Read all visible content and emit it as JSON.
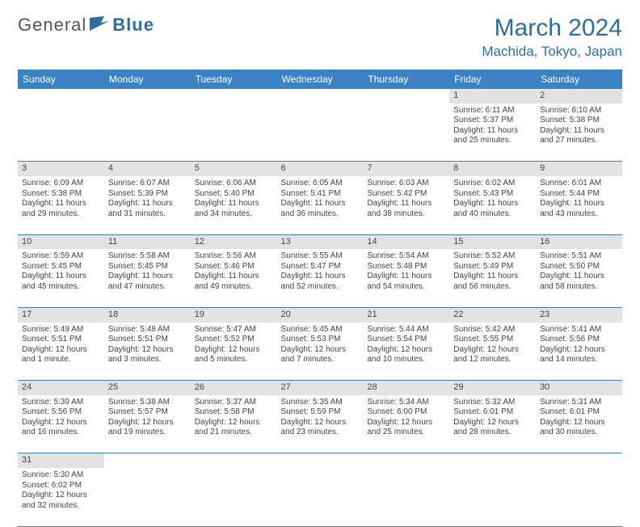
{
  "logo": {
    "general": "General",
    "blue": "Blue"
  },
  "title": "March 2024",
  "location": "Machida, Tokyo, Japan",
  "colors": {
    "header_bg": "#3b82c4",
    "header_fg": "#ffffff",
    "accent": "#2d6da3",
    "daynum_bg": "#e3e3e3",
    "text": "#444444",
    "border": "#3b82c4",
    "page_bg": "#ffffff"
  },
  "day_names": [
    "Sunday",
    "Monday",
    "Tuesday",
    "Wednesday",
    "Thursday",
    "Friday",
    "Saturday"
  ],
  "weeks": [
    [
      null,
      null,
      null,
      null,
      null,
      {
        "n": "1",
        "sr": "Sunrise: 6:11 AM",
        "ss": "Sunset: 5:37 PM",
        "dl1": "Daylight: 11 hours",
        "dl2": "and 25 minutes."
      },
      {
        "n": "2",
        "sr": "Sunrise: 6:10 AM",
        "ss": "Sunset: 5:38 PM",
        "dl1": "Daylight: 11 hours",
        "dl2": "and 27 minutes."
      }
    ],
    [
      {
        "n": "3",
        "sr": "Sunrise: 6:09 AM",
        "ss": "Sunset: 5:38 PM",
        "dl1": "Daylight: 11 hours",
        "dl2": "and 29 minutes."
      },
      {
        "n": "4",
        "sr": "Sunrise: 6:07 AM",
        "ss": "Sunset: 5:39 PM",
        "dl1": "Daylight: 11 hours",
        "dl2": "and 31 minutes."
      },
      {
        "n": "5",
        "sr": "Sunrise: 6:06 AM",
        "ss": "Sunset: 5:40 PM",
        "dl1": "Daylight: 11 hours",
        "dl2": "and 34 minutes."
      },
      {
        "n": "6",
        "sr": "Sunrise: 6:05 AM",
        "ss": "Sunset: 5:41 PM",
        "dl1": "Daylight: 11 hours",
        "dl2": "and 36 minutes."
      },
      {
        "n": "7",
        "sr": "Sunrise: 6:03 AM",
        "ss": "Sunset: 5:42 PM",
        "dl1": "Daylight: 11 hours",
        "dl2": "and 38 minutes."
      },
      {
        "n": "8",
        "sr": "Sunrise: 6:02 AM",
        "ss": "Sunset: 5:43 PM",
        "dl1": "Daylight: 11 hours",
        "dl2": "and 40 minutes."
      },
      {
        "n": "9",
        "sr": "Sunrise: 6:01 AM",
        "ss": "Sunset: 5:44 PM",
        "dl1": "Daylight: 11 hours",
        "dl2": "and 43 minutes."
      }
    ],
    [
      {
        "n": "10",
        "sr": "Sunrise: 5:59 AM",
        "ss": "Sunset: 5:45 PM",
        "dl1": "Daylight: 11 hours",
        "dl2": "and 45 minutes."
      },
      {
        "n": "11",
        "sr": "Sunrise: 5:58 AM",
        "ss": "Sunset: 5:45 PM",
        "dl1": "Daylight: 11 hours",
        "dl2": "and 47 minutes."
      },
      {
        "n": "12",
        "sr": "Sunrise: 5:56 AM",
        "ss": "Sunset: 5:46 PM",
        "dl1": "Daylight: 11 hours",
        "dl2": "and 49 minutes."
      },
      {
        "n": "13",
        "sr": "Sunrise: 5:55 AM",
        "ss": "Sunset: 5:47 PM",
        "dl1": "Daylight: 11 hours",
        "dl2": "and 52 minutes."
      },
      {
        "n": "14",
        "sr": "Sunrise: 5:54 AM",
        "ss": "Sunset: 5:48 PM",
        "dl1": "Daylight: 11 hours",
        "dl2": "and 54 minutes."
      },
      {
        "n": "15",
        "sr": "Sunrise: 5:52 AM",
        "ss": "Sunset: 5:49 PM",
        "dl1": "Daylight: 11 hours",
        "dl2": "and 56 minutes."
      },
      {
        "n": "16",
        "sr": "Sunrise: 5:51 AM",
        "ss": "Sunset: 5:50 PM",
        "dl1": "Daylight: 11 hours",
        "dl2": "and 58 minutes."
      }
    ],
    [
      {
        "n": "17",
        "sr": "Sunrise: 5:49 AM",
        "ss": "Sunset: 5:51 PM",
        "dl1": "Daylight: 12 hours",
        "dl2": "and 1 minute."
      },
      {
        "n": "18",
        "sr": "Sunrise: 5:48 AM",
        "ss": "Sunset: 5:51 PM",
        "dl1": "Daylight: 12 hours",
        "dl2": "and 3 minutes."
      },
      {
        "n": "19",
        "sr": "Sunrise: 5:47 AM",
        "ss": "Sunset: 5:52 PM",
        "dl1": "Daylight: 12 hours",
        "dl2": "and 5 minutes."
      },
      {
        "n": "20",
        "sr": "Sunrise: 5:45 AM",
        "ss": "Sunset: 5:53 PM",
        "dl1": "Daylight: 12 hours",
        "dl2": "and 7 minutes."
      },
      {
        "n": "21",
        "sr": "Sunrise: 5:44 AM",
        "ss": "Sunset: 5:54 PM",
        "dl1": "Daylight: 12 hours",
        "dl2": "and 10 minutes."
      },
      {
        "n": "22",
        "sr": "Sunrise: 5:42 AM",
        "ss": "Sunset: 5:55 PM",
        "dl1": "Daylight: 12 hours",
        "dl2": "and 12 minutes."
      },
      {
        "n": "23",
        "sr": "Sunrise: 5:41 AM",
        "ss": "Sunset: 5:56 PM",
        "dl1": "Daylight: 12 hours",
        "dl2": "and 14 minutes."
      }
    ],
    [
      {
        "n": "24",
        "sr": "Sunrise: 5:39 AM",
        "ss": "Sunset: 5:56 PM",
        "dl1": "Daylight: 12 hours",
        "dl2": "and 16 minutes."
      },
      {
        "n": "25",
        "sr": "Sunrise: 5:38 AM",
        "ss": "Sunset: 5:57 PM",
        "dl1": "Daylight: 12 hours",
        "dl2": "and 19 minutes."
      },
      {
        "n": "26",
        "sr": "Sunrise: 5:37 AM",
        "ss": "Sunset: 5:58 PM",
        "dl1": "Daylight: 12 hours",
        "dl2": "and 21 minutes."
      },
      {
        "n": "27",
        "sr": "Sunrise: 5:35 AM",
        "ss": "Sunset: 5:59 PM",
        "dl1": "Daylight: 12 hours",
        "dl2": "and 23 minutes."
      },
      {
        "n": "28",
        "sr": "Sunrise: 5:34 AM",
        "ss": "Sunset: 6:00 PM",
        "dl1": "Daylight: 12 hours",
        "dl2": "and 25 minutes."
      },
      {
        "n": "29",
        "sr": "Sunrise: 5:32 AM",
        "ss": "Sunset: 6:01 PM",
        "dl1": "Daylight: 12 hours",
        "dl2": "and 28 minutes."
      },
      {
        "n": "30",
        "sr": "Sunrise: 5:31 AM",
        "ss": "Sunset: 6:01 PM",
        "dl1": "Daylight: 12 hours",
        "dl2": "and 30 minutes."
      }
    ],
    [
      {
        "n": "31",
        "sr": "Sunrise: 5:30 AM",
        "ss": "Sunset: 6:02 PM",
        "dl1": "Daylight: 12 hours",
        "dl2": "and 32 minutes."
      },
      null,
      null,
      null,
      null,
      null,
      null
    ]
  ]
}
